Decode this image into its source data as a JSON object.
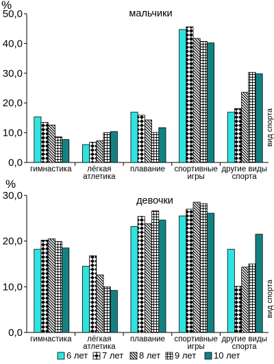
{
  "y_unit": "%",
  "x_axis_label": "вид спорта",
  "legend": [
    {
      "name": "6 лет",
      "pattern": "solid-cyan"
    },
    {
      "name": "7 лет",
      "pattern": "diamonds"
    },
    {
      "name": "8 лет",
      "pattern": "diagonal"
    },
    {
      "name": "9 лет",
      "pattern": "grid"
    },
    {
      "name": "10 лет",
      "pattern": "solid-teal"
    }
  ],
  "colors": {
    "cyan": "#2fe3e0",
    "teal": "#138181"
  },
  "chart_data": [
    {
      "type": "bar",
      "title": "мальчики",
      "ylabel": "%",
      "xlabel": "вид спорта",
      "ylim": [
        0,
        50
      ],
      "yticks": [
        "0,0",
        "10,0",
        "20,0",
        "30,0",
        "40,0",
        "50,0"
      ],
      "categories": [
        [
          "гимнастика"
        ],
        [
          "лёгкая",
          "атлетика"
        ],
        [
          "плавание"
        ],
        [
          "спортивные",
          "игры"
        ],
        [
          "другие виды",
          "спорта"
        ]
      ],
      "series": [
        {
          "name": "6 лет",
          "values": [
            15.3,
            6.0,
            16.9,
            44.7,
            16.9
          ]
        },
        {
          "name": "7 лет",
          "values": [
            13.5,
            6.8,
            15.9,
            45.6,
            18.1
          ]
        },
        {
          "name": "8 лет",
          "values": [
            12.6,
            7.3,
            14.3,
            41.7,
            23.6
          ]
        },
        {
          "name": "9 лет",
          "values": [
            8.6,
            10.0,
            10.1,
            40.7,
            30.3
          ]
        },
        {
          "name": "10 лет",
          "values": [
            7.7,
            10.4,
            11.7,
            40.2,
            29.8
          ]
        }
      ]
    },
    {
      "type": "bar",
      "title": "девочки",
      "ylabel": "%",
      "xlabel": "вид спорта",
      "ylim": [
        0,
        30
      ],
      "yticks": [
        "0,0",
        "10,0",
        "20,0",
        "30,0"
      ],
      "categories": [
        [
          "гимнастика"
        ],
        [
          "лёгкая",
          "атлетика"
        ],
        [
          "плавание"
        ],
        [
          "спортивные",
          "игры"
        ],
        [
          "другие виды",
          "спорта"
        ]
      ],
      "series": [
        {
          "name": "6 лет",
          "values": [
            18.2,
            14.5,
            23.2,
            25.5,
            18.2
          ]
        },
        {
          "name": "7 лет",
          "values": [
            20.2,
            16.8,
            25.4,
            27.0,
            10.1
          ]
        },
        {
          "name": "8 лет",
          "values": [
            20.5,
            12.6,
            23.8,
            28.5,
            14.3
          ]
        },
        {
          "name": "9 лет",
          "values": [
            19.9,
            10.0,
            26.6,
            28.2,
            15.0
          ]
        },
        {
          "name": "10 лет",
          "values": [
            18.5,
            9.2,
            24.6,
            26.1,
            21.5
          ]
        }
      ]
    }
  ]
}
